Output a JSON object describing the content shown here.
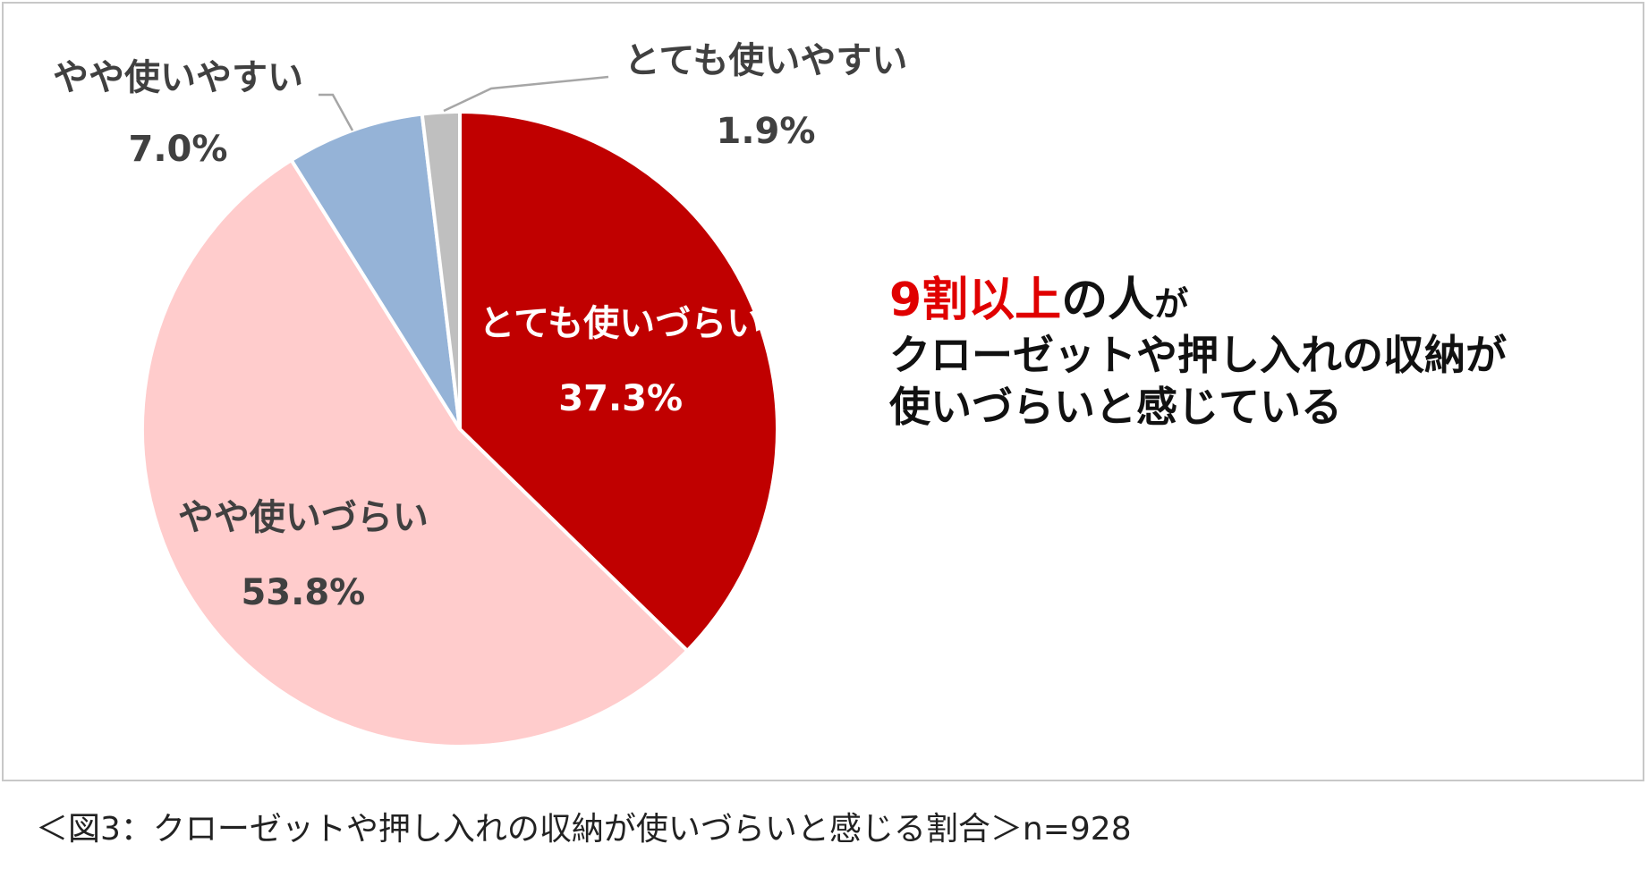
{
  "chart_data": {
    "type": "pie",
    "slices": [
      {
        "label": "とても使いづらい",
        "value": 37.3,
        "value_label": "37.3%",
        "color": "#c00000"
      },
      {
        "label": "やや使いづらい",
        "value": 53.8,
        "value_label": "53.8%",
        "color": "#ffcccc"
      },
      {
        "label": "やや使いやすい",
        "value": 7.0,
        "value_label": "7.0%",
        "color": "#95b3d7"
      },
      {
        "label": "とても使いやすい",
        "value": 1.9,
        "value_label": "1.9%",
        "color": "#bfbfbf"
      }
    ],
    "start": "12 o'clock",
    "direction": "clockwise"
  },
  "headline": {
    "accent": "9割以上",
    "mid": "の人",
    "tail": "が",
    "line2": "クローゼットや押し入れの収納が",
    "line3": "使いづらいと感じている",
    "accent_color": "#e00000"
  },
  "caption": "＜図3：クローゼットや押し入れの収納が使いづらいと感じる割合＞n=928"
}
